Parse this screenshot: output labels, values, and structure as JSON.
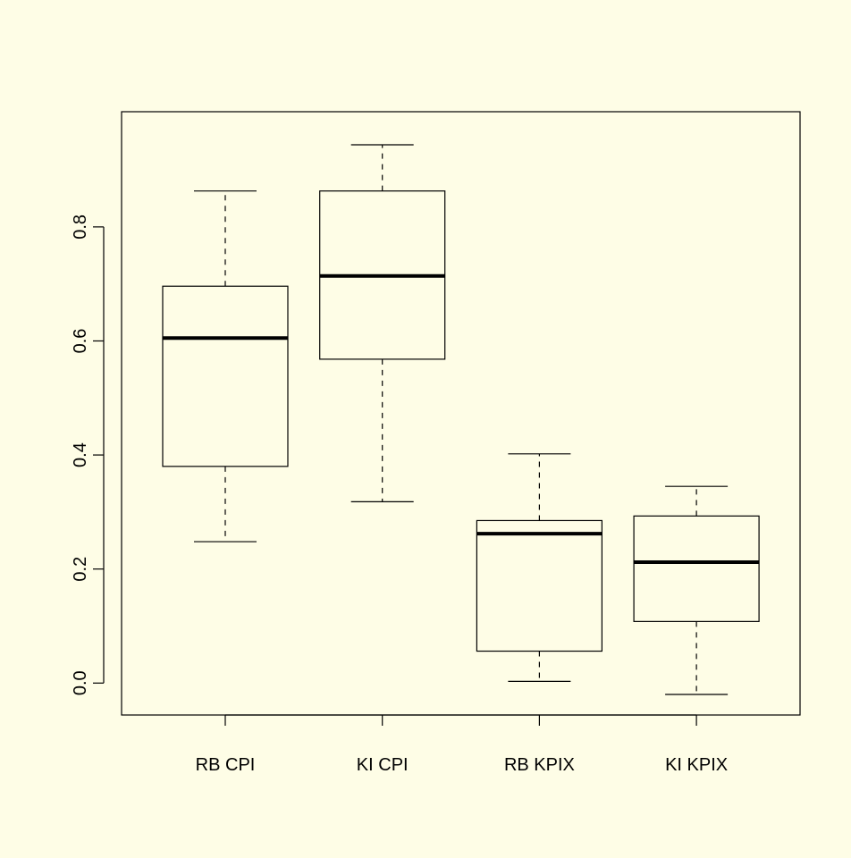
{
  "chart_data": {
    "type": "boxplot",
    "categories": [
      "RB CPI",
      "KI CPI",
      "RB KPIX",
      "KI KPIX"
    ],
    "boxes": [
      {
        "min": 0.248,
        "q1": 0.38,
        "median": 0.605,
        "q3": 0.696,
        "max": 0.863
      },
      {
        "min": 0.318,
        "q1": 0.568,
        "median": 0.714,
        "q3": 0.863,
        "max": 0.944
      },
      {
        "min": 0.003,
        "q1": 0.056,
        "median": 0.262,
        "q3": 0.285,
        "max": 0.402
      },
      {
        "min": -0.02,
        "q1": 0.108,
        "median": 0.212,
        "q3": 0.293,
        "max": 0.345
      }
    ],
    "color": "#000000",
    "ylim": [
      -0.056,
      1.002
    ],
    "yticks": [
      {
        "value": 0,
        "label": "0.0"
      },
      0.2,
      0.4,
      0.6,
      0.8
    ]
  }
}
